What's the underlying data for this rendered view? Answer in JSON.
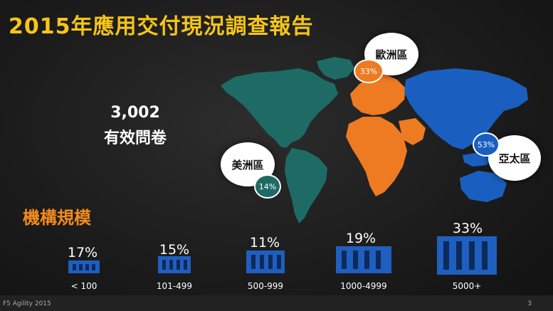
{
  "title": "2015年應用交付現況調查報告",
  "respondents": {
    "count": "3,002",
    "label": "有效問卷"
  },
  "regions": [
    {
      "name": "歐洲區",
      "pct": "33%",
      "color": "#ee7b22"
    },
    {
      "name": "亞太區",
      "pct": "53%",
      "color": "#1a5fbf"
    },
    {
      "name": "美洲區",
      "pct": "14%",
      "color": "#1e6b66"
    }
  ],
  "org_size": {
    "heading": "機構規模",
    "groups": [
      {
        "label": "< 100",
        "pct": "17%",
        "value": 17
      },
      {
        "label": "101-499",
        "pct": "15%",
        "value": 15
      },
      {
        "label": "500-999",
        "pct": "11%",
        "value": 11
      },
      {
        "label": "1000-4999",
        "pct": "19%",
        "value": 19
      },
      {
        "label": "5000+",
        "pct": "33%",
        "value": 33
      }
    ]
  },
  "footer": {
    "left": "F5 Agility 2015",
    "page": "3"
  },
  "colors": {
    "title": "#f5c518",
    "heading": "#f28b1d",
    "building": "#1f5fc0"
  }
}
